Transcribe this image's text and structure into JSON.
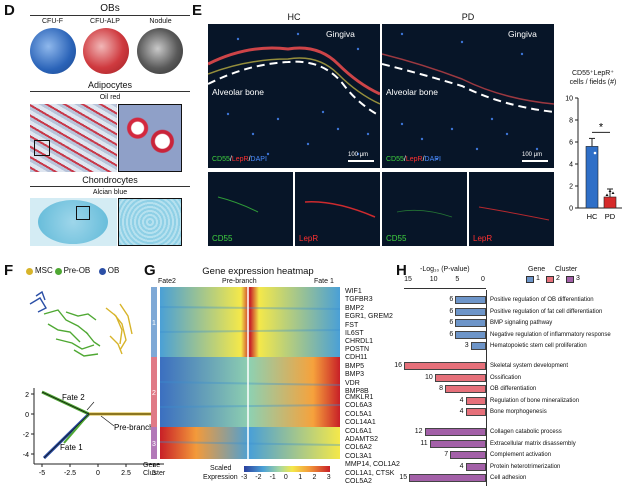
{
  "panel_letters": {
    "d": "D",
    "e": "E",
    "f": "F",
    "g": "G",
    "h": "H"
  },
  "panelD": {
    "obs_title": "OBs",
    "dish_labels": [
      "CFU-F",
      "CFU-ALP",
      "Nodule"
    ],
    "adipo_title": "Adipocytes",
    "adipo_stain": "Oil red",
    "chondro_title": "Chondrocytes",
    "chondro_stain": "Alcian blue",
    "colors": {
      "cfu_f": "#3a78c9",
      "cfu_alp": "#c8242b",
      "nodule": "#3a3a3a",
      "oilred": "#c0202a",
      "alcian": "#7ec8e3"
    }
  },
  "panelE": {
    "col_hc": "HC",
    "col_pd": "PD",
    "gingiva": "Gingiva",
    "alveolar": "Alveolar bone",
    "legend_cd55": "CD55",
    "legend_lepr": "LepR",
    "legend_dapi": "DAPI",
    "slash": "/",
    "scale": "100 μm",
    "lower_cd55": "CD55",
    "lower_lepr": "LepR",
    "colors": {
      "cd55": "#3fd23f",
      "lepr": "#ff3030",
      "dapi": "#4a8cff"
    }
  },
  "chartE": {
    "type": "bar",
    "title_line1": "CD55⁺LepR⁺",
    "title_line2": "cells / fields (#)",
    "categories": [
      "HC",
      "PD"
    ],
    "values": [
      5.6,
      1.0
    ],
    "yticks": [
      "0",
      "2",
      "4",
      "6",
      "8",
      "10"
    ],
    "ylim": [
      0,
      10
    ],
    "significance": "*",
    "colors": [
      "#2f6fc7",
      "#d62b2b"
    ]
  },
  "panelF": {
    "legend": [
      {
        "label": "MSC",
        "color": "#d7b42a"
      },
      {
        "label": "Pre-OB",
        "color": "#4fa833"
      },
      {
        "label": "OB",
        "color": "#2b4fa6"
      }
    ],
    "traj_labels": {
      "fate2": "Fate 2",
      "fate1": "Fate 1",
      "prebranch": "Pre-branch"
    },
    "xticks": [
      "-5",
      "-2.5",
      "0",
      "2.5",
      "5"
    ],
    "yticks": [
      "2",
      "0",
      "-2",
      "-4"
    ]
  },
  "panelG": {
    "title": "Gene expression heatmap",
    "col_labels": {
      "fate2": "Fate2",
      "prebranch": "Pre-branch",
      "fate1": "Fate 1"
    },
    "cluster_ids": [
      "1",
      "2",
      "3"
    ],
    "cluster_colors": [
      "#7fa9d6",
      "#e07a86",
      "#b279b8"
    ],
    "genes": [
      "WIF1",
      "TGFBR3",
      "BMP2",
      "EGR1, GREM2",
      "FST",
      "IL6ST",
      "CHRDL1",
      "POSTN",
      "CDH11",
      "BMP5",
      "BMP3",
      "VDR",
      "BMP8B",
      "CMKLR1",
      "COL6A3",
      "COL5A1",
      "COL14A1",
      "COL6A1",
      "ADAMTS2",
      "COL6A2",
      "COL3A1",
      "MMP14, COL1A2",
      "COL1A1, CTSK",
      "COL5A2"
    ],
    "footer_gene": "Gene",
    "footer_cluster": "Cluster",
    "scale_title_1": "Scaled",
    "scale_title_2": "Expression",
    "scale_ticks": [
      "-3",
      "-2",
      "-1",
      "0",
      "1",
      "2",
      "3"
    ]
  },
  "panelH": {
    "axis_title": "-Log₁₀ (P-value)",
    "axis_ticks": [
      "15",
      "10",
      "5",
      "0"
    ],
    "legend_title_gene": "Gene",
    "legend_title_cluster": "Cluster",
    "legend_items": [
      "1",
      "2",
      "3"
    ],
    "colors": [
      "#6d95c9",
      "#e6707a",
      "#a360a8"
    ],
    "chart_data": {
      "type": "bar",
      "xlabel": "-Log₁₀ (P-value)",
      "xlim": [
        15,
        0
      ],
      "terms": [
        {
          "term": "Positive regulation of OB differentiation",
          "value": 6,
          "cluster": 1
        },
        {
          "term": "Positive regulation of fat cell differentiation",
          "value": 6,
          "cluster": 1
        },
        {
          "term": "BMP signaling pathway",
          "value": 6,
          "cluster": 1
        },
        {
          "term": "Negative regulation of inflammatory response",
          "value": 6,
          "cluster": 1
        },
        {
          "term": "Hematopoietic stem cell proliferation",
          "value": 3,
          "cluster": 1
        },
        {
          "term": "Skeletal system development",
          "value": 16,
          "cluster": 2
        },
        {
          "term": "Ossification",
          "value": 10,
          "cluster": 2
        },
        {
          "term": "OB differentiation",
          "value": 8,
          "cluster": 2
        },
        {
          "term": "Regulation of bone mineralization",
          "value": 4,
          "cluster": 2
        },
        {
          "term": "Bone morphogenesis",
          "value": 4,
          "cluster": 2
        },
        {
          "term": "Collagen catabolic process",
          "value": 12,
          "cluster": 3
        },
        {
          "term": "Extracellular matrix disassembly",
          "value": 11,
          "cluster": 3
        },
        {
          "term": "Complement activation",
          "value": 7,
          "cluster": 3
        },
        {
          "term": "Protein heterotrimerization",
          "value": 4,
          "cluster": 3
        },
        {
          "term": "Cell adhesion",
          "value": 15,
          "cluster": 3
        }
      ]
    }
  }
}
